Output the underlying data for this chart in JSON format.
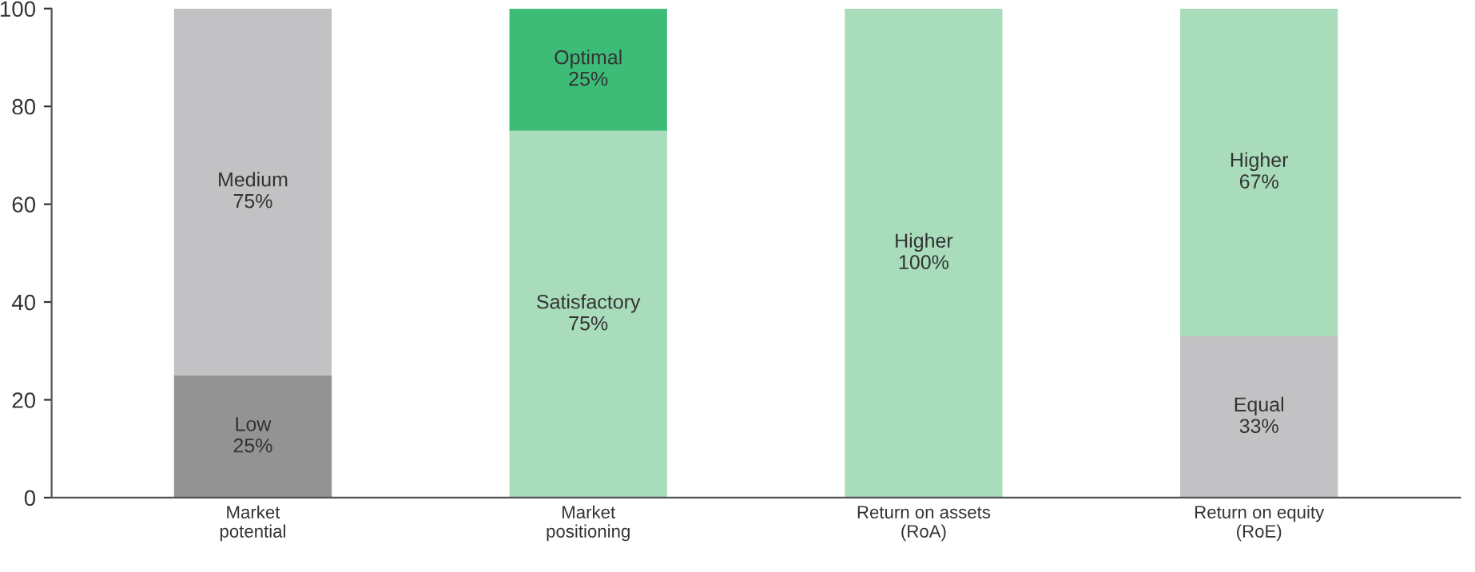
{
  "chart_data": {
    "type": "bar",
    "stacked": true,
    "categories": [
      "Market\npotential",
      "Market\npositioning",
      "Return on assets\n(RoA)",
      "Return on equity\n(RoE)"
    ],
    "series": [
      {
        "name": "Low",
        "color": "#939393",
        "values": [
          25,
          null,
          null,
          null
        ],
        "value_labels": [
          "25%",
          null,
          null,
          null
        ]
      },
      {
        "name": "Equal",
        "color": "#c2c2c4",
        "values": [
          null,
          null,
          null,
          33
        ],
        "value_labels": [
          null,
          null,
          null,
          "33%"
        ]
      },
      {
        "name": "Satisfactory",
        "color": "#a8dcbb",
        "values": [
          null,
          75,
          null,
          null
        ],
        "value_labels": [
          null,
          "75%",
          null,
          null
        ]
      },
      {
        "name": "Medium",
        "color": "#c2c2c4",
        "values": [
          75,
          null,
          null,
          null
        ],
        "value_labels": [
          "75%",
          null,
          null,
          null
        ]
      },
      {
        "name": "Optimal",
        "color": "#3dbc78",
        "values": [
          null,
          25,
          null,
          null
        ],
        "value_labels": [
          null,
          "25%",
          null,
          null
        ]
      },
      {
        "name": "Higher",
        "color": "#a8dcbb",
        "values": [
          null,
          null,
          100,
          67
        ],
        "value_labels": [
          null,
          null,
          "100%",
          "67%"
        ]
      }
    ],
    "ylim": [
      0,
      100
    ],
    "yticks": [
      0,
      20,
      40,
      60,
      80,
      100
    ],
    "grid": false,
    "legend": false
  }
}
